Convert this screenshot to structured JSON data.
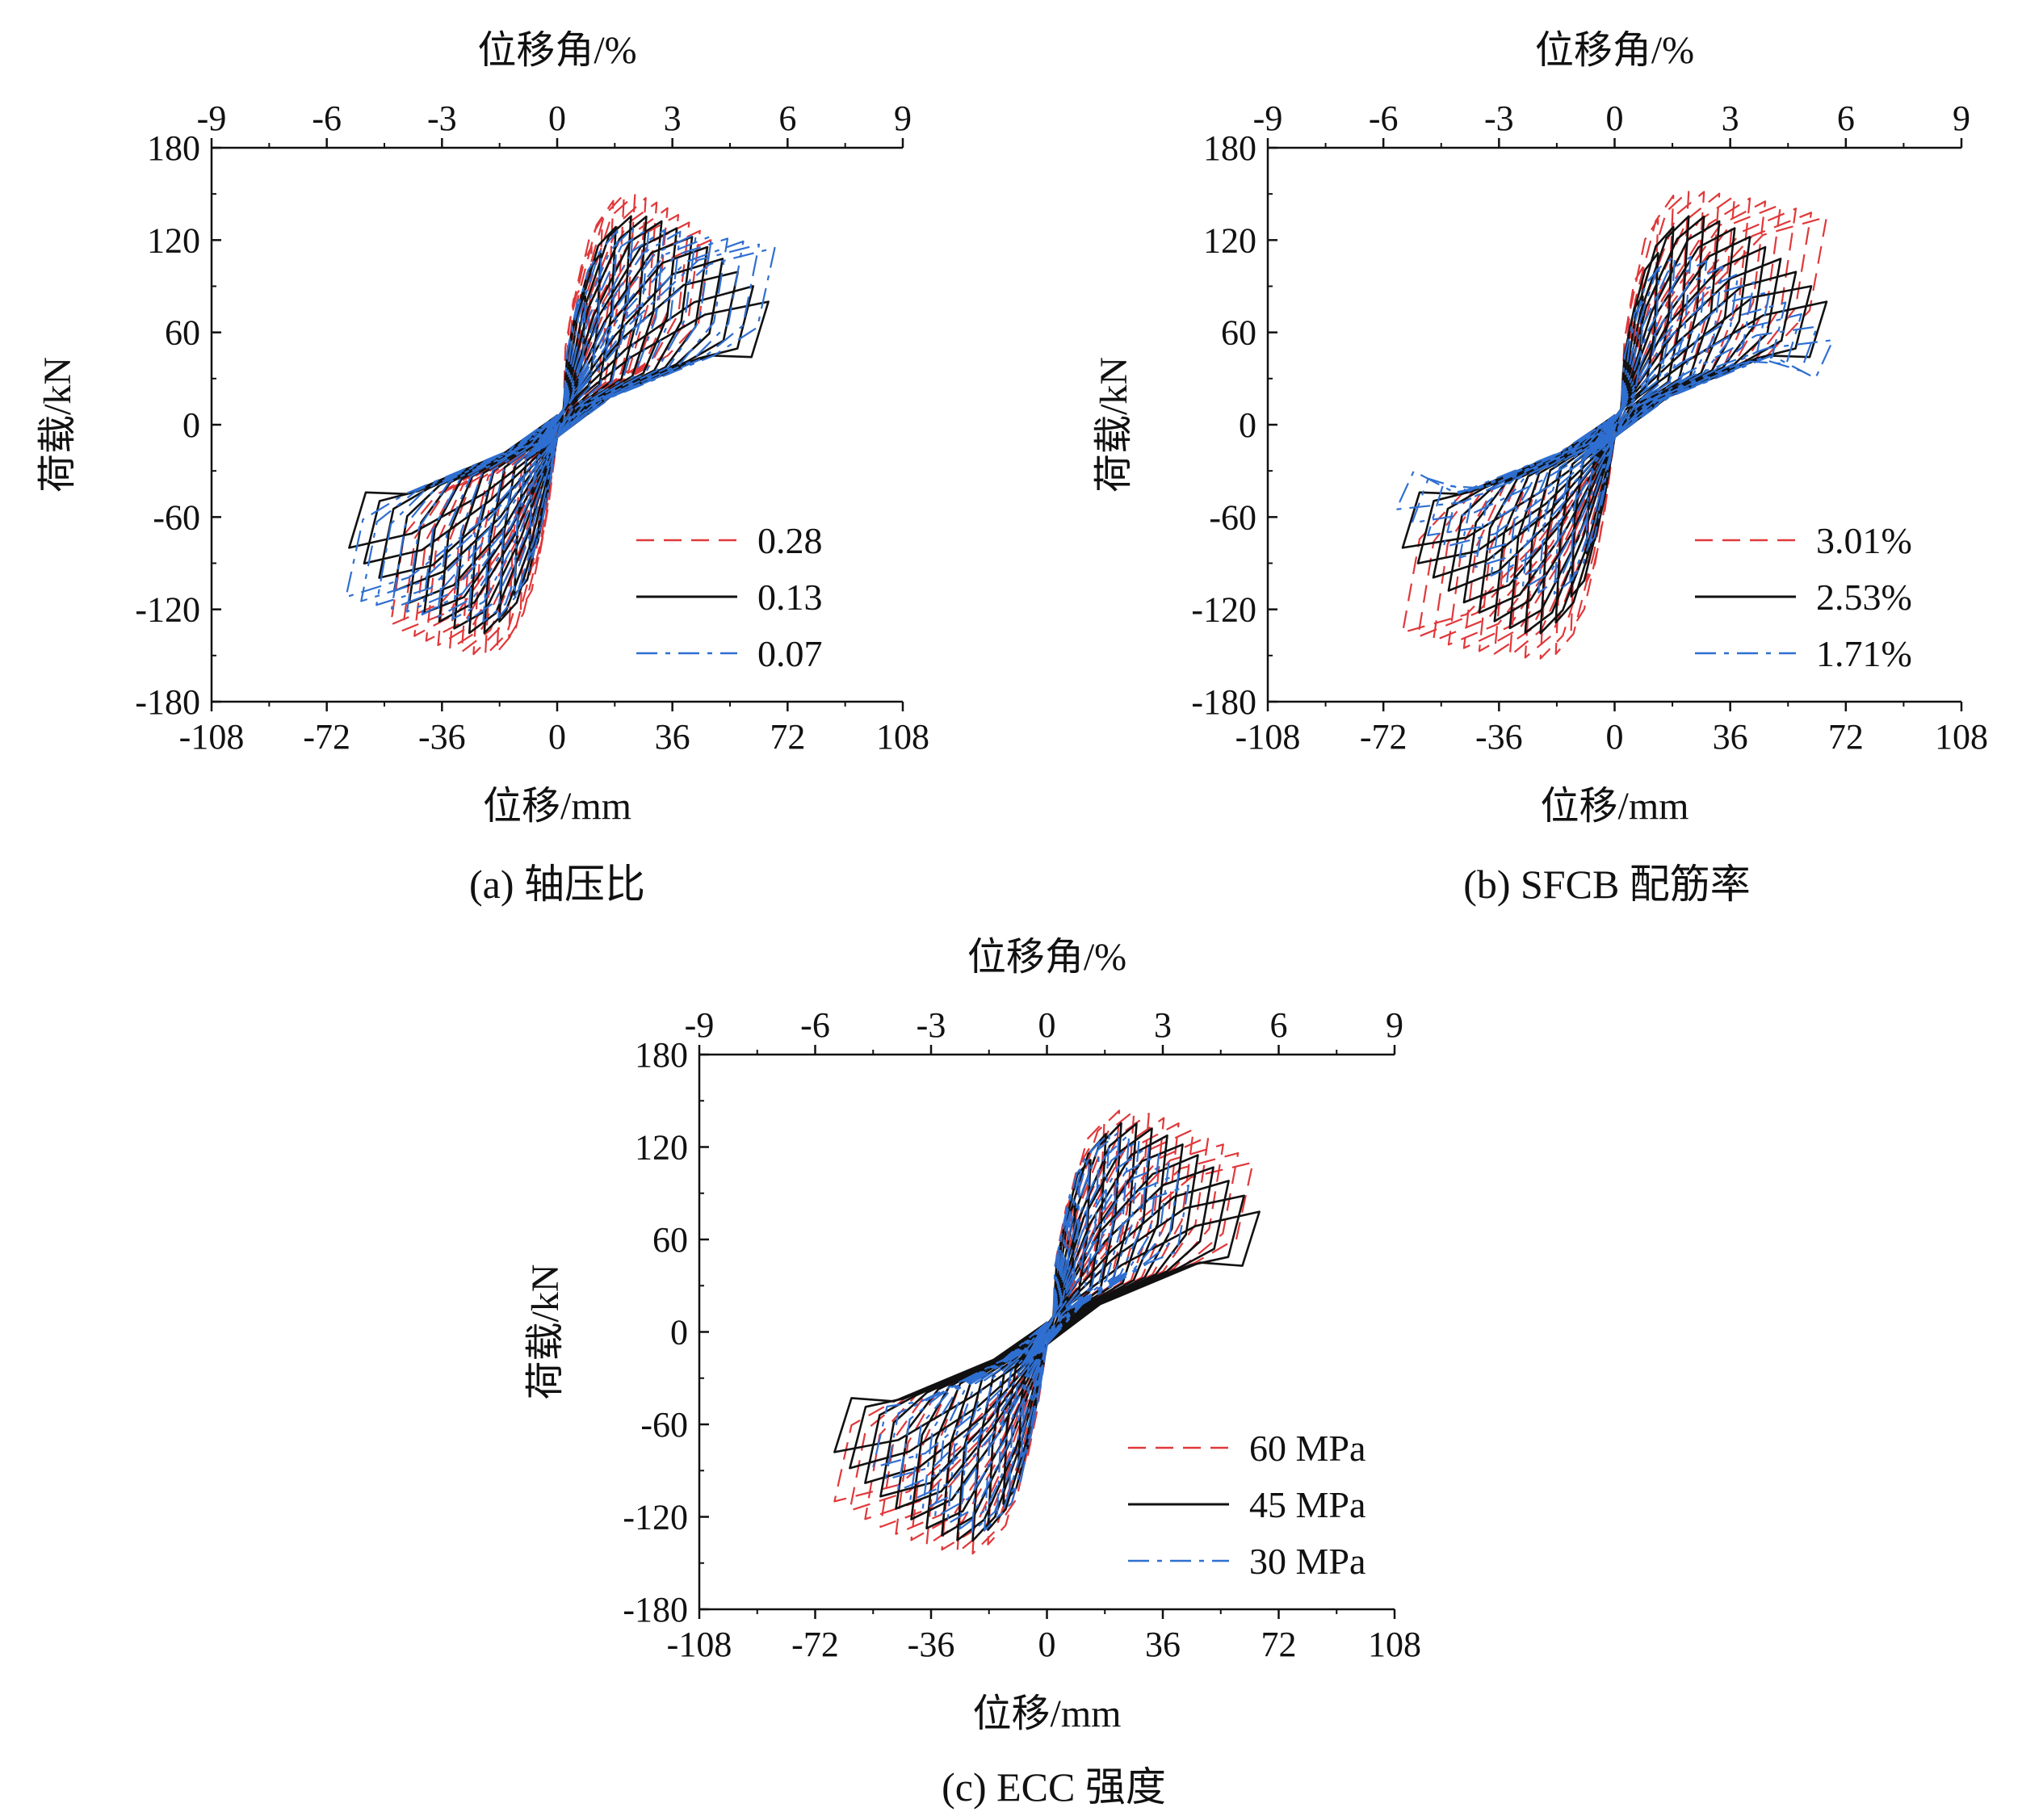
{
  "chart_data": [
    {
      "type": "line",
      "subplot": "a",
      "caption": "(a) 轴压比",
      "xlabel": "位移/mm",
      "ylabel": "荷载/kN",
      "x2label": "位移角/%",
      "xlim": [
        -108,
        108
      ],
      "ylim": [
        -180,
        180
      ],
      "x2lim": [
        -9,
        9
      ],
      "xticks": [
        "-108",
        "-72",
        "-36",
        "0",
        "36",
        "72",
        "108"
      ],
      "yticks": [
        "180",
        "120",
        "60",
        "0",
        "-60",
        "-120",
        "-180"
      ],
      "x2ticks": [
        "-9",
        "-6",
        "-3",
        "0",
        "3",
        "6",
        "9"
      ],
      "legend_position": "bottom-right",
      "series": [
        {
          "name": "0.28",
          "color": "#e0383a",
          "dash": "dashed",
          "peak_pos": [
            22,
            150
          ],
          "peak_neg": [
            -22,
            -150
          ],
          "max_disp_pos": 48,
          "max_disp_neg": -52,
          "end_pos": [
            48,
            120
          ],
          "end_neg": [
            -52,
            -130
          ]
        },
        {
          "name": "0.13",
          "color": "#111111",
          "dash": "solid",
          "peak_pos": [
            25,
            136
          ],
          "peak_neg": [
            -25,
            -136
          ],
          "max_disp_pos": 66,
          "max_disp_neg": -65,
          "end_pos": [
            66,
            80
          ],
          "end_neg": [
            -65,
            -80
          ]
        },
        {
          "name": "0.07",
          "color": "#2f6fd1",
          "dash": "dashdot",
          "peak_pos": [
            22,
            128
          ],
          "peak_neg": [
            -22,
            -128
          ],
          "max_disp_pos": 68,
          "max_disp_neg": -66,
          "end_pos": [
            68,
            115
          ],
          "end_neg": [
            -66,
            -112
          ]
        }
      ]
    },
    {
      "type": "line",
      "subplot": "b",
      "caption": "(b) SFCB 配筋率",
      "xlabel": "位移/mm",
      "ylabel": "荷载/kN",
      "x2label": "位移角/%",
      "xlim": [
        -108,
        108
      ],
      "ylim": [
        -180,
        180
      ],
      "x2lim": [
        -9,
        9
      ],
      "xticks": [
        "-108",
        "-72",
        "-36",
        "0",
        "36",
        "72",
        "108"
      ],
      "yticks": [
        "180",
        "120",
        "60",
        "0",
        "-60",
        "-120",
        "-180"
      ],
      "x2ticks": [
        "-9",
        "-6",
        "-3",
        "0",
        "3",
        "6",
        "9"
      ],
      "legend_position": "bottom-right",
      "series": [
        {
          "name": "3.01%",
          "color": "#e0383a",
          "dash": "dashed",
          "peak_pos": [
            22,
            152
          ],
          "peak_neg": [
            -22,
            -152
          ],
          "max_disp_pos": 66,
          "max_disp_neg": -66,
          "end_pos": [
            66,
            135
          ],
          "end_neg": [
            -66,
            -135
          ]
        },
        {
          "name": "2.53%",
          "color": "#111111",
          "dash": "solid",
          "peak_pos": [
            25,
            136
          ],
          "peak_neg": [
            -25,
            -136
          ],
          "max_disp_pos": 66,
          "max_disp_neg": -66,
          "end_pos": [
            66,
            80
          ],
          "end_neg": [
            -66,
            -80
          ]
        },
        {
          "name": "1.71%",
          "color": "#2f6fd1",
          "dash": "dashdot",
          "peak_pos": [
            20,
            110
          ],
          "peak_neg": [
            -20,
            -110
          ],
          "max_disp_pos": 68,
          "max_disp_neg": -68,
          "end_pos": [
            68,
            55
          ],
          "end_neg": [
            -68,
            -55
          ]
        }
      ]
    },
    {
      "type": "line",
      "subplot": "c",
      "caption": "(c) ECC 强度",
      "xlabel": "位移/mm",
      "ylabel": "荷载/kN",
      "x2label": "位移角/%",
      "xlim": [
        -108,
        108
      ],
      "ylim": [
        -180,
        180
      ],
      "x2lim": [
        -9,
        9
      ],
      "xticks": [
        "-108",
        "-72",
        "-36",
        "0",
        "36",
        "72",
        "108"
      ],
      "yticks": [
        "180",
        "120",
        "60",
        "0",
        "-60",
        "-120",
        "-180"
      ],
      "x2ticks": [
        "-9",
        "-6",
        "-3",
        "0",
        "3",
        "6",
        "9"
      ],
      "legend_position": "bottom-right",
      "series": [
        {
          "name": "60 MPa",
          "color": "#e0383a",
          "dash": "dashed",
          "peak_pos": [
            24,
            144
          ],
          "peak_neg": [
            -24,
            -144
          ],
          "max_disp_pos": 64,
          "max_disp_neg": -66,
          "end_pos": [
            64,
            110
          ],
          "end_neg": [
            -66,
            -110
          ]
        },
        {
          "name": "45 MPa",
          "color": "#111111",
          "dash": "solid",
          "peak_pos": [
            25,
            136
          ],
          "peak_neg": [
            -25,
            -136
          ],
          "max_disp_pos": 66,
          "max_disp_neg": -66,
          "end_pos": [
            66,
            78
          ],
          "end_neg": [
            -66,
            -78
          ]
        },
        {
          "name": "30 MPa",
          "color": "#2f6fd1",
          "dash": "dashdot",
          "peak_pos": [
            22,
            130
          ],
          "peak_neg": [
            -22,
            -130
          ],
          "max_disp_pos": 44,
          "max_disp_neg": -54,
          "end_pos": [
            44,
            95
          ],
          "end_neg": [
            -54,
            -88
          ]
        }
      ]
    }
  ]
}
